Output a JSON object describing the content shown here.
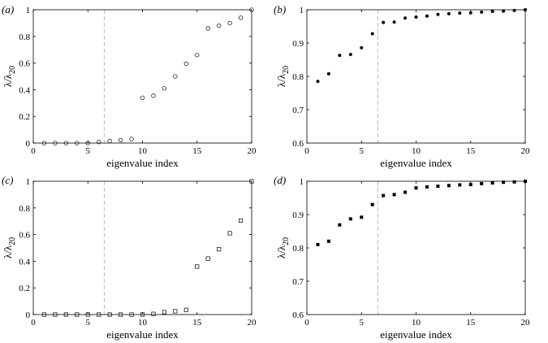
{
  "chart_data": [
    {
      "panel": "(a)",
      "type": "scatter",
      "marker": "circle-open",
      "xlabel": "eigenvalue index",
      "ylabel": "λ/λ20",
      "xlim": [
        0,
        20
      ],
      "ylim": [
        0,
        1
      ],
      "xticks": [
        0,
        5,
        10,
        15,
        20
      ],
      "yticks": [
        0,
        0.2,
        0.4,
        0.6,
        0.8,
        1
      ],
      "ytick_labels": [
        "0",
        "0.2",
        "0.4",
        "0.6",
        "0.8",
        "1"
      ],
      "vline_x": 6.5,
      "x": [
        1,
        2,
        3,
        4,
        5,
        6,
        7,
        8,
        9,
        10,
        11,
        12,
        13,
        14,
        15,
        16,
        17,
        18,
        19,
        20
      ],
      "y": [
        0.0,
        0.0,
        0.0,
        0.0,
        0.0,
        0.008,
        0.015,
        0.022,
        0.03,
        0.34,
        0.355,
        0.41,
        0.5,
        0.595,
        0.66,
        0.86,
        0.88,
        0.9,
        0.94,
        1.0
      ],
      "grid": false
    },
    {
      "panel": "(b)",
      "type": "scatter",
      "marker": "circle-filled",
      "xlabel": "eigenvalue index",
      "ylabel": "λ/λ20",
      "xlim": [
        0,
        20
      ],
      "ylim": [
        0.6,
        1
      ],
      "xticks": [
        0,
        5,
        10,
        15,
        20
      ],
      "yticks": [
        0.6,
        0.7,
        0.8,
        0.9,
        1
      ],
      "ytick_labels": [
        "0.6",
        "0.7",
        "0.8",
        "0.9",
        "1"
      ],
      "vline_x": 6.5,
      "x": [
        1,
        2,
        3,
        4,
        5,
        6,
        7,
        8,
        9,
        10,
        11,
        12,
        13,
        14,
        15,
        16,
        17,
        18,
        19,
        20
      ],
      "y": [
        0.785,
        0.808,
        0.863,
        0.866,
        0.886,
        0.928,
        0.962,
        0.963,
        0.975,
        0.978,
        0.981,
        0.986,
        0.988,
        0.99,
        0.991,
        0.993,
        0.995,
        0.996,
        0.998,
        1.0
      ],
      "grid": false
    },
    {
      "panel": "(c)",
      "type": "scatter",
      "marker": "square-open",
      "xlabel": "eigenvalue index",
      "ylabel": "λ/λ20",
      "xlim": [
        0,
        20
      ],
      "ylim": [
        0,
        1
      ],
      "xticks": [
        0,
        5,
        10,
        15,
        20
      ],
      "yticks": [
        0,
        0.2,
        0.4,
        0.6,
        0.8,
        1
      ],
      "ytick_labels": [
        "0",
        "0.2",
        "0.4",
        "0.6",
        "0.8",
        "1"
      ],
      "vline_x": 6.5,
      "x": [
        1,
        2,
        3,
        4,
        5,
        6,
        7,
        8,
        9,
        10,
        11,
        12,
        13,
        14,
        15,
        16,
        17,
        18,
        19,
        20
      ],
      "y": [
        0.0,
        0.0,
        0.0,
        0.0,
        0.0,
        0.0,
        0.0,
        0.0,
        0.0,
        0.0,
        0.005,
        0.018,
        0.025,
        0.035,
        0.36,
        0.42,
        0.49,
        0.61,
        0.705,
        1.0
      ],
      "grid": false
    },
    {
      "panel": "(d)",
      "type": "scatter",
      "marker": "square-filled",
      "xlabel": "eigenvalue index",
      "ylabel": "λ/λ20",
      "xlim": [
        0,
        20
      ],
      "ylim": [
        0.6,
        1
      ],
      "xticks": [
        0,
        5,
        10,
        15,
        20
      ],
      "yticks": [
        0.6,
        0.7,
        0.8,
        0.9,
        1
      ],
      "ytick_labels": [
        "0.6",
        "0.7",
        "0.8",
        "0.9",
        "1"
      ],
      "vline_x": 6.5,
      "x": [
        1,
        2,
        3,
        4,
        5,
        6,
        7,
        8,
        9,
        10,
        11,
        12,
        13,
        14,
        15,
        16,
        17,
        18,
        19,
        20
      ],
      "y": [
        0.81,
        0.82,
        0.869,
        0.887,
        0.892,
        0.93,
        0.957,
        0.96,
        0.967,
        0.98,
        0.983,
        0.985,
        0.987,
        0.989,
        0.99,
        0.993,
        0.995,
        0.997,
        0.998,
        1.0
      ],
      "grid": false
    }
  ],
  "colors": {
    "axis": "#000000",
    "marker": "#000000",
    "vline": "#bbbbbb"
  }
}
